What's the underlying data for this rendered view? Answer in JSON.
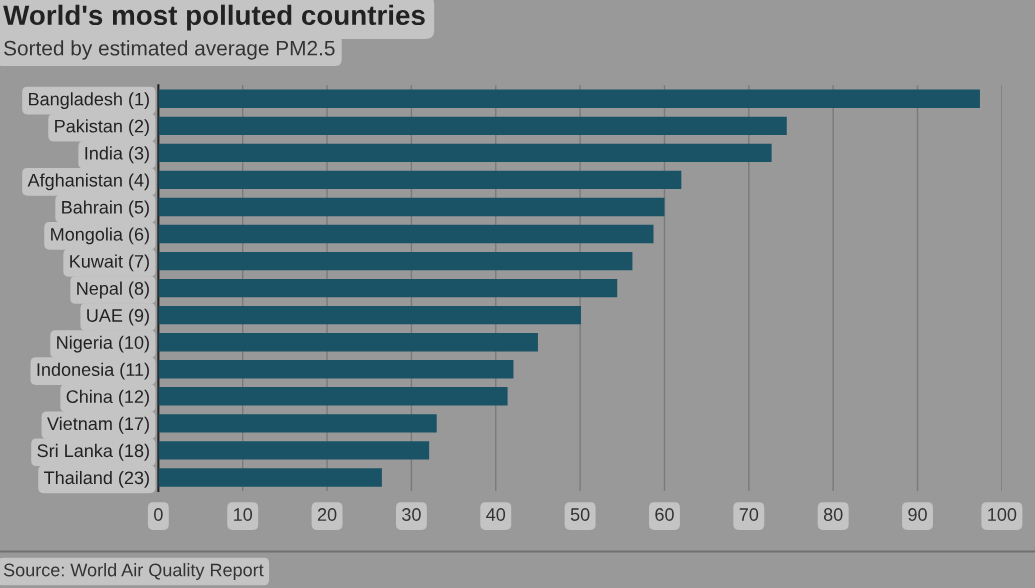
{
  "chart_data": {
    "type": "bar",
    "orientation": "horizontal",
    "title": "World's most polluted countries",
    "subtitle": "Sorted by estimated average PM2.5",
    "categories": [
      "Bangladesh (1)",
      "Pakistan (2)",
      "India (3)",
      "Afghanistan (4)",
      "Bahrain (5)",
      "Mongolia (6)",
      "Kuwait (7)",
      "Nepal (8)",
      "UAE (9)",
      "Nigeria (10)",
      "Indonesia (11)",
      "China (12)",
      "Vietnam (17)",
      "Sri Lanka (18)",
      "Thailand (23)"
    ],
    "values": [
      97.4,
      74.5,
      72.7,
      62.0,
      60.0,
      58.7,
      56.2,
      54.4,
      50.1,
      45.0,
      42.1,
      41.4,
      33.0,
      32.1,
      26.5
    ],
    "color": "#1a5366",
    "xlim": [
      0,
      100
    ],
    "xticks": [
      0,
      10,
      20,
      30,
      40,
      50,
      60,
      70,
      80,
      90,
      100
    ],
    "grid": "x",
    "annotations": [
      "Source: World Air Quality Report"
    ]
  }
}
